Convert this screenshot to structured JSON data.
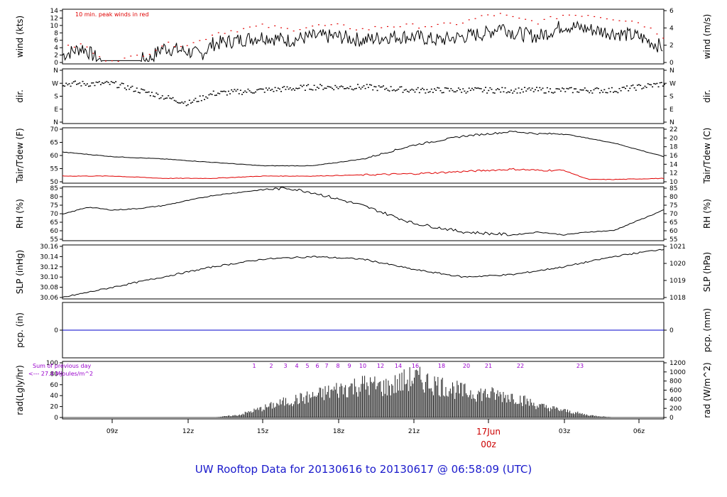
{
  "title": "UW Rooftop Data for 20130616  to  20130617 @ 06:58:09  (UTC)",
  "colors": {
    "text": "#000000",
    "peak": "#e00000",
    "dew": "#e00000",
    "pcp": "#0000cc",
    "title": "#1a1acc",
    "note": "#9900cc",
    "date": "#cc0000"
  },
  "time_axis": {
    "ticks": [
      "09z",
      "12z",
      "15z",
      "18z",
      "21z",
      "03z",
      "06z"
    ],
    "date_label": "17Jun",
    "date_sub": "00z"
  },
  "panels": [
    {
      "ylabel_left": "wind (kts)",
      "ylabel_right": "wind (m/s)",
      "ticks_left": [
        "0",
        "2",
        "4",
        "6",
        "8",
        "10",
        "12",
        "14"
      ],
      "ticks_right": [
        "0",
        "2",
        "4",
        "6"
      ],
      "note": "10 min. peak winds in red"
    },
    {
      "ylabel_left": "dir.",
      "ylabel_right": "dir.",
      "ticks_left": [
        "N",
        "E",
        "S",
        "W",
        "N"
      ],
      "ticks_right": [
        "N",
        "E",
        "S",
        "W",
        "N"
      ]
    },
    {
      "ylabel_left": "Tair/Tdew (F)",
      "ylabel_right": "Tair/Tdew (C)",
      "ticks_left": [
        "50",
        "55",
        "60",
        "65",
        "70"
      ],
      "ticks_right": [
        "10",
        "12",
        "14",
        "16",
        "18",
        "20",
        "22"
      ]
    },
    {
      "ylabel_left": "RH (%)",
      "ylabel_right": "RH (%)",
      "ticks_left": [
        "55",
        "60",
        "65",
        "70",
        "75",
        "80",
        "85"
      ],
      "ticks_right": [
        "55",
        "60",
        "65",
        "70",
        "75",
        "80",
        "85"
      ]
    },
    {
      "ylabel_left": "SLP (inHg)",
      "ylabel_right": "SLP (hPa)",
      "ticks_left": [
        "30.06",
        "30.08",
        "30.10",
        "30.12",
        "30.14",
        "30.16"
      ],
      "ticks_right": [
        "1018",
        "1019",
        "1020",
        "1021"
      ]
    },
    {
      "ylabel_left": "pcp. (in)",
      "ylabel_right": "pcp. (mm)",
      "ticks_left": [
        "0"
      ],
      "ticks_right": [
        "0"
      ]
    },
    {
      "ylabel_left": "rad(Lgly/hr)",
      "ylabel_right": "rad (W/m^2)",
      "ticks_left": [
        "0",
        "20",
        "40",
        "60",
        "80",
        "100"
      ],
      "ticks_right": [
        "0",
        "200",
        "400",
        "600",
        "800",
        "1000",
        "1200"
      ],
      "note1": "Sum of previous day",
      "note2": "<--- 27.4 MJoules/m^2",
      "hour_labels": [
        "1",
        "2",
        "3",
        "4",
        "5",
        "6",
        "7",
        "8",
        "9",
        "10",
        "12",
        "14",
        "16",
        "18",
        "20",
        "21",
        "22",
        "23"
      ]
    }
  ],
  "chart_data": [
    {
      "type": "line",
      "name": "wind",
      "ylabel": "wind (kts)",
      "ylim": [
        0,
        14
      ],
      "x_hours_from_06z": [
        0,
        0.8,
        1.5,
        2.5,
        3.5,
        4,
        5,
        5.5,
        6,
        7,
        8,
        9,
        10,
        11,
        12,
        13,
        14,
        15,
        16,
        17,
        17.5,
        18,
        19,
        20,
        21,
        22,
        23,
        24
      ],
      "series": [
        {
          "name": "wind",
          "values": [
            2,
            4,
            0.5,
            0.5,
            1,
            4,
            3,
            2,
            5,
            6,
            7,
            6,
            7,
            7,
            6,
            7,
            7,
            6,
            7,
            8,
            10,
            8,
            7,
            10,
            9,
            8,
            7,
            4
          ]
        },
        {
          "name": "10 min. peak winds",
          "values": [
            4,
            5,
            1,
            1,
            3,
            5,
            5,
            6,
            8,
            9,
            10,
            9,
            10,
            10,
            9,
            10,
            10,
            10,
            11,
            13,
            13,
            12,
            11,
            13,
            13,
            12,
            11,
            7
          ]
        }
      ]
    },
    {
      "type": "scatter",
      "name": "direction",
      "ylabel": "dir.",
      "ylim": [
        "N",
        "N"
      ],
      "x_hours_from_06z": [
        0,
        2,
        4,
        5,
        6,
        8,
        10,
        12,
        14,
        16,
        18,
        20,
        22,
        24
      ],
      "values": [
        "W",
        "W",
        "S",
        "SE",
        "SSW",
        "SW",
        "WSW",
        "WSW",
        "SW",
        "SW",
        "SW",
        "SW",
        "SW",
        "W"
      ]
    },
    {
      "type": "line",
      "name": "temperature",
      "ylabel": "Tair/Tdew (F)",
      "ylim": [
        50,
        73
      ],
      "x_hours_from_06z": [
        0,
        2,
        4,
        6,
        8,
        10,
        12,
        14,
        16,
        18,
        19,
        20,
        21,
        22,
        24
      ],
      "series": [
        {
          "name": "Tair",
          "values": [
            63,
            61,
            60,
            58.5,
            57,
            57,
            60,
            66,
            70,
            72,
            71,
            71,
            69,
            67,
            61
          ]
        },
        {
          "name": "Tdew",
          "values": [
            52.5,
            52.5,
            51.5,
            51.5,
            52.5,
            52.5,
            53,
            53.5,
            54.5,
            55.5,
            55,
            55,
            51,
            51,
            51.5
          ]
        }
      ]
    },
    {
      "type": "line",
      "name": "rh",
      "ylabel": "RH (%)",
      "ylim": [
        52,
        87
      ],
      "x_hours_from_06z": [
        0,
        1,
        2,
        3,
        4,
        6,
        8,
        9,
        10,
        12,
        14,
        16,
        18,
        19,
        20,
        21,
        22,
        24
      ],
      "values": [
        69,
        74,
        72,
        73,
        75,
        82,
        86,
        87,
        84,
        75,
        63,
        57,
        55,
        57,
        55,
        57,
        58,
        72
      ]
    },
    {
      "type": "line",
      "name": "slp",
      "ylabel": "SLP (inHg)",
      "ylim": [
        30.06,
        30.16
      ],
      "x_hours_from_06z": [
        0,
        2,
        4,
        6,
        8,
        10,
        12,
        14,
        16,
        18,
        20,
        22,
        24
      ],
      "values": [
        30.06,
        30.08,
        30.1,
        30.12,
        30.135,
        30.14,
        30.135,
        30.115,
        30.1,
        30.105,
        30.12,
        30.14,
        30.155
      ]
    },
    {
      "type": "line",
      "name": "precipitation",
      "ylabel": "pcp. (in)",
      "ylim": [
        0,
        1
      ],
      "x_hours_from_06z": [
        0,
        24
      ],
      "values": [
        0,
        0
      ]
    },
    {
      "type": "area",
      "name": "radiation",
      "ylabel": "rad(Lgly/hr)",
      "ylim": [
        0,
        100
      ],
      "x_hours_from_06z": [
        0,
        6,
        7,
        8,
        9,
        10,
        11,
        12,
        13,
        14,
        15,
        16,
        17,
        18,
        19,
        20,
        21,
        22,
        23,
        24
      ],
      "values": [
        0,
        0,
        5,
        20,
        35,
        45,
        60,
        70,
        65,
        85,
        70,
        55,
        50,
        45,
        25,
        15,
        5,
        0,
        0,
        0
      ]
    }
  ]
}
